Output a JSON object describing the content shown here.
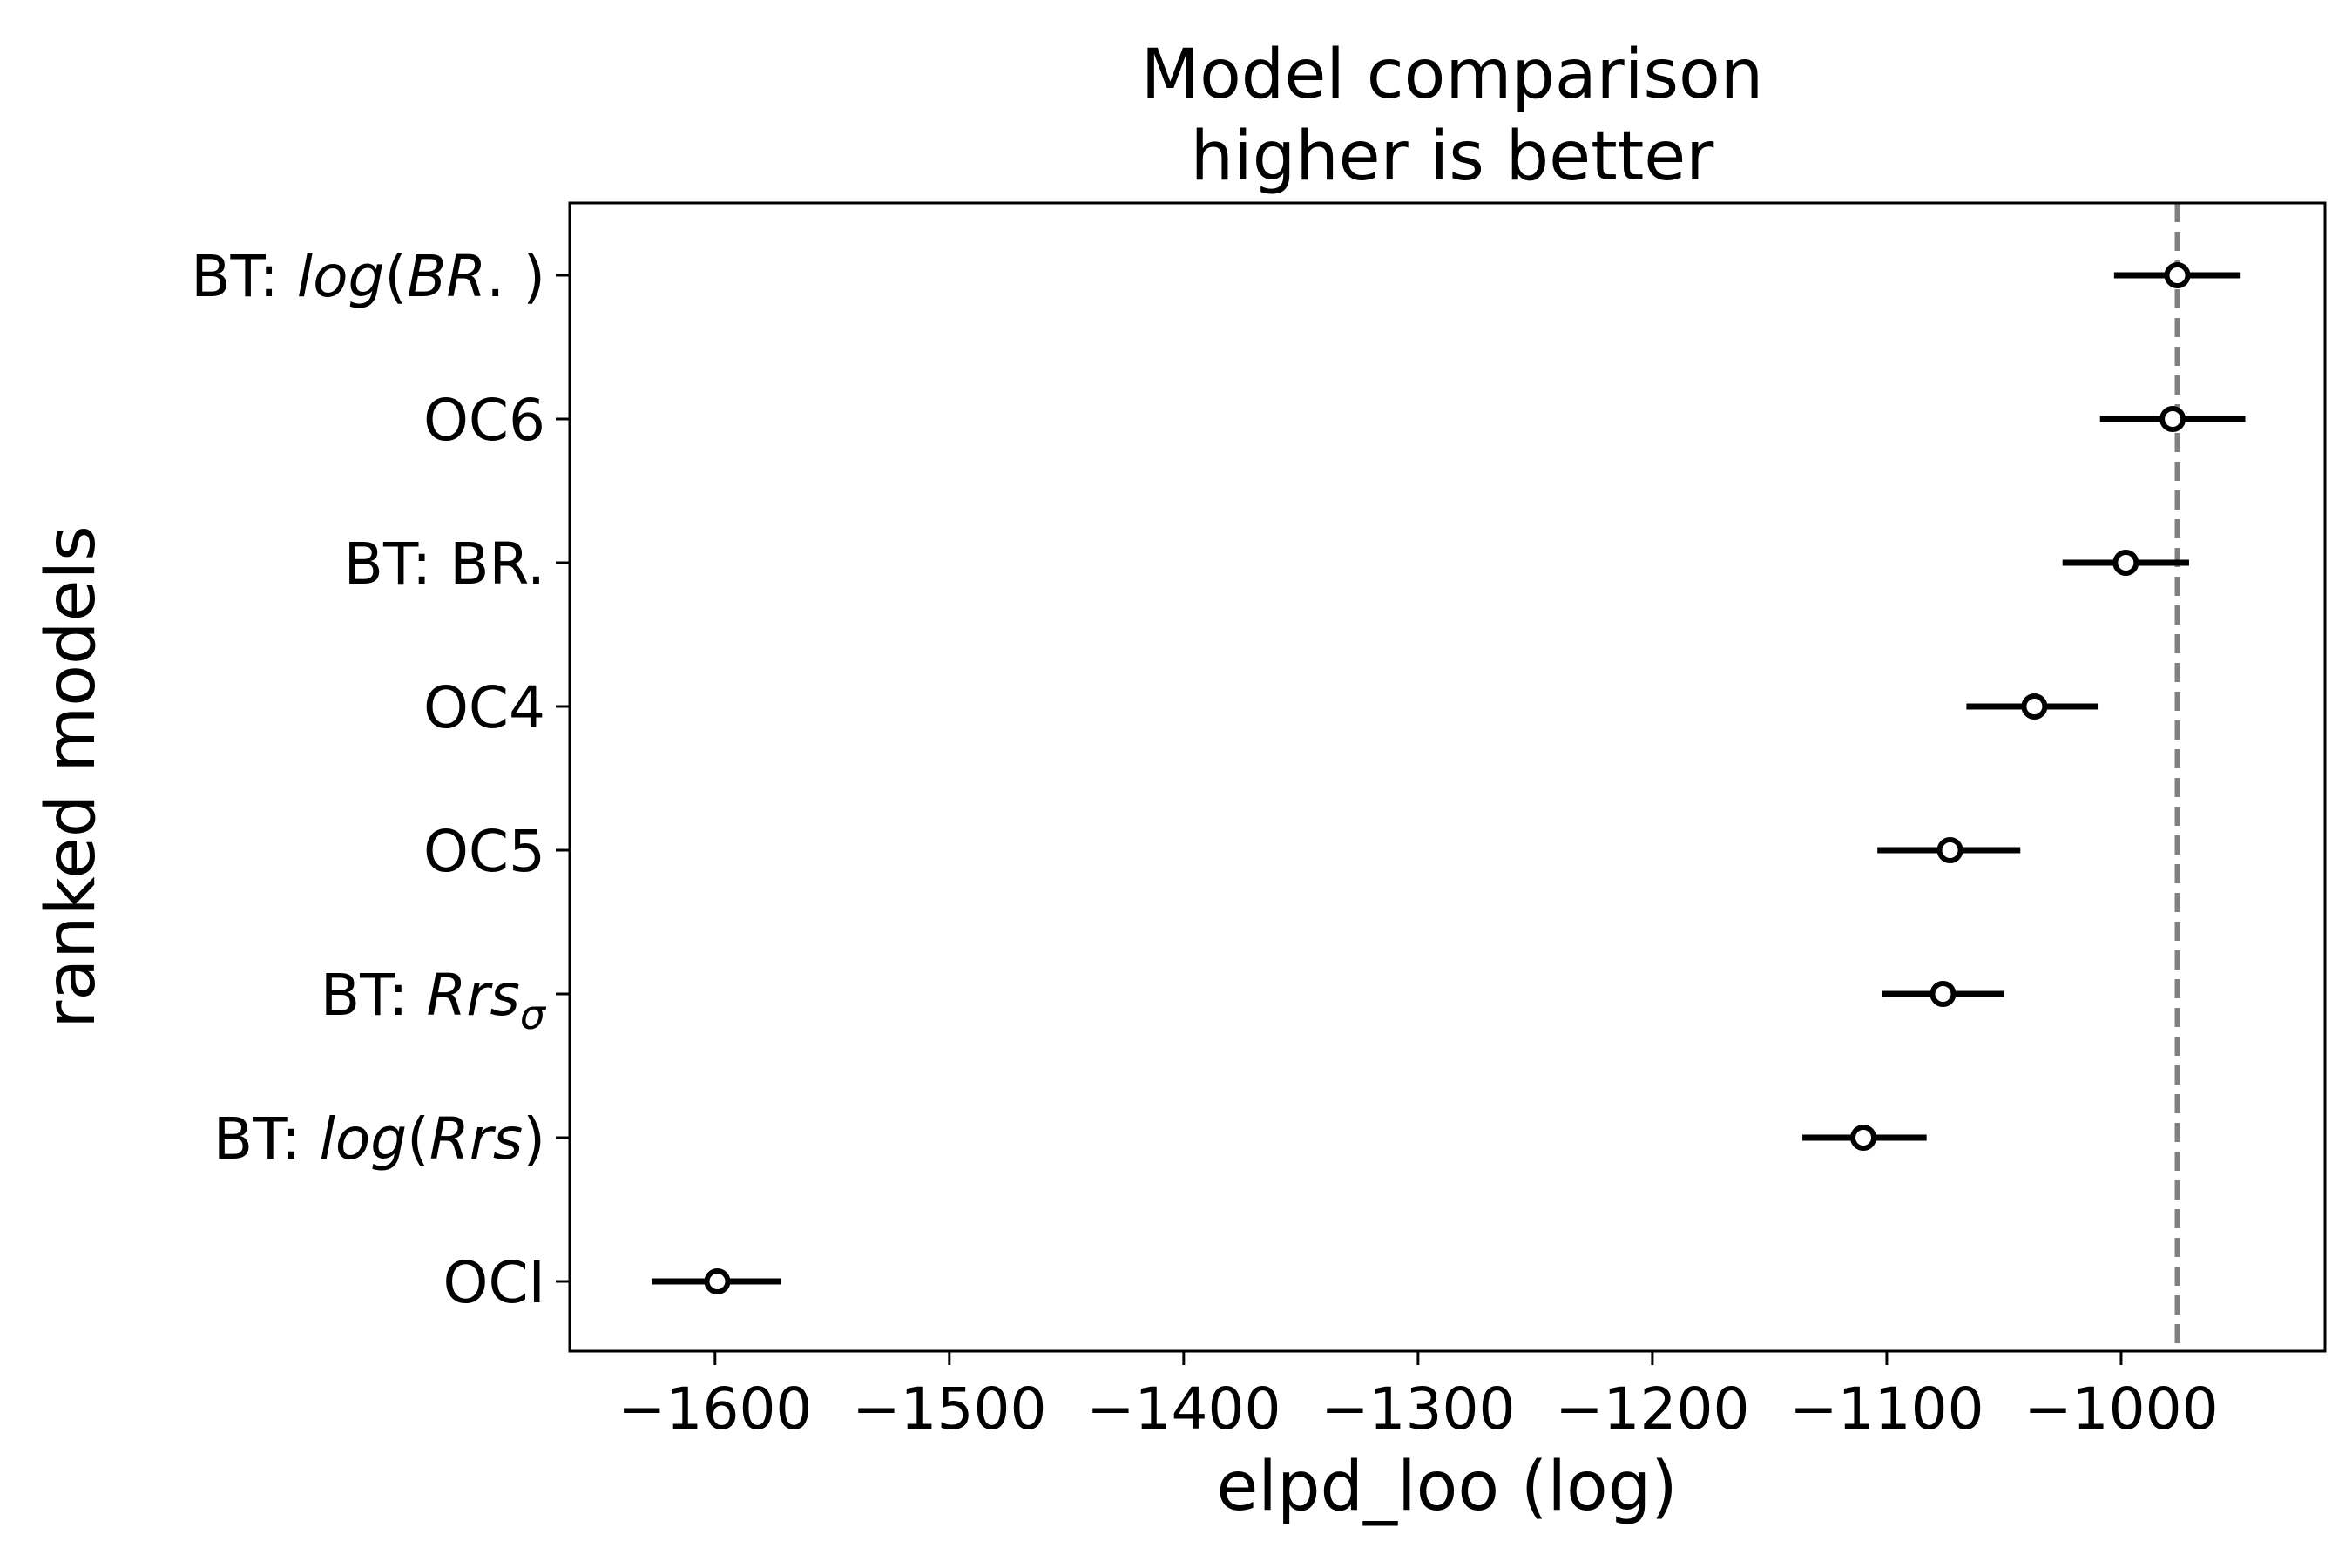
{
  "chart_data": {
    "type": "scatter",
    "title": "Model comparison",
    "subtitle": "higher is better",
    "xlabel": "elpd_loo (log)",
    "ylabel": "ranked models",
    "xlim": [
      -1662,
      -913
    ],
    "xticks": [
      -1600,
      -1500,
      -1400,
      -1300,
      -1200,
      -1100,
      -1000
    ],
    "xtick_labels": [
      "−1600",
      "−1500",
      "−1400",
      "−1300",
      "−1200",
      "−1100",
      "−1000"
    ],
    "reference_line": {
      "x": -976,
      "style": "dashed",
      "color": "#808080"
    },
    "grid": false,
    "legend": "none",
    "colors": {
      "marker": "#000000",
      "errorbar": "#000000",
      "reference": "#808080"
    },
    "models": [
      {
        "label_parts": [
          {
            "t": "BT: "
          },
          {
            "t": "log",
            "it": true
          },
          {
            "t": "("
          },
          {
            "t": "BR",
            "it": true
          },
          {
            "t": ". )"
          }
        ],
        "elpd": -976,
        "lower": -1003,
        "upper": -949
      },
      {
        "label_parts": [
          {
            "t": "OC6"
          }
        ],
        "elpd": -978,
        "lower": -1009,
        "upper": -947
      },
      {
        "label_parts": [
          {
            "t": "BT: BR."
          }
        ],
        "elpd": -998,
        "lower": -1025,
        "upper": -971
      },
      {
        "label_parts": [
          {
            "t": "OC4"
          }
        ],
        "elpd": -1037,
        "lower": -1066,
        "upper": -1010
      },
      {
        "label_parts": [
          {
            "t": "OC5"
          }
        ],
        "elpd": -1073,
        "lower": -1104,
        "upper": -1043
      },
      {
        "label_parts": [
          {
            "t": "BT: "
          },
          {
            "t": "Rrs",
            "it": true
          },
          {
            "t": "σ",
            "it": true,
            "sub": true
          }
        ],
        "elpd": -1076,
        "lower": -1102,
        "upper": -1050
      },
      {
        "label_parts": [
          {
            "t": "BT: "
          },
          {
            "t": "log",
            "it": true
          },
          {
            "t": "("
          },
          {
            "t": "Rrs",
            "it": true
          },
          {
            "t": ")"
          }
        ],
        "elpd": -1110,
        "lower": -1136,
        "upper": -1083
      },
      {
        "label_parts": [
          {
            "t": "OCI"
          }
        ],
        "elpd": -1599,
        "lower": -1627,
        "upper": -1572
      }
    ]
  }
}
